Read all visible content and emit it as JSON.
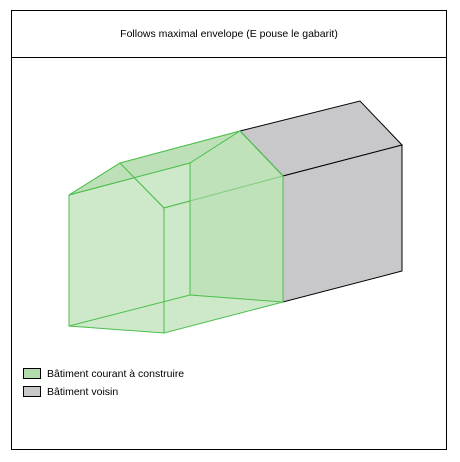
{
  "title": "Follows maximal envelope (E pouse le gabarit)",
  "colors": {
    "new_building_fill": "#b3dcad",
    "new_building_stroke": "#4cbf4c",
    "neighbor_fill": "#c8c8ca",
    "neighbor_stroke": "#000000"
  },
  "legend": {
    "items": [
      {
        "label": "Bâtiment courant à construire",
        "color": "#b3dcad"
      },
      {
        "label": "Bâtiment voisin",
        "color": "#c8c8ca"
      }
    ]
  }
}
